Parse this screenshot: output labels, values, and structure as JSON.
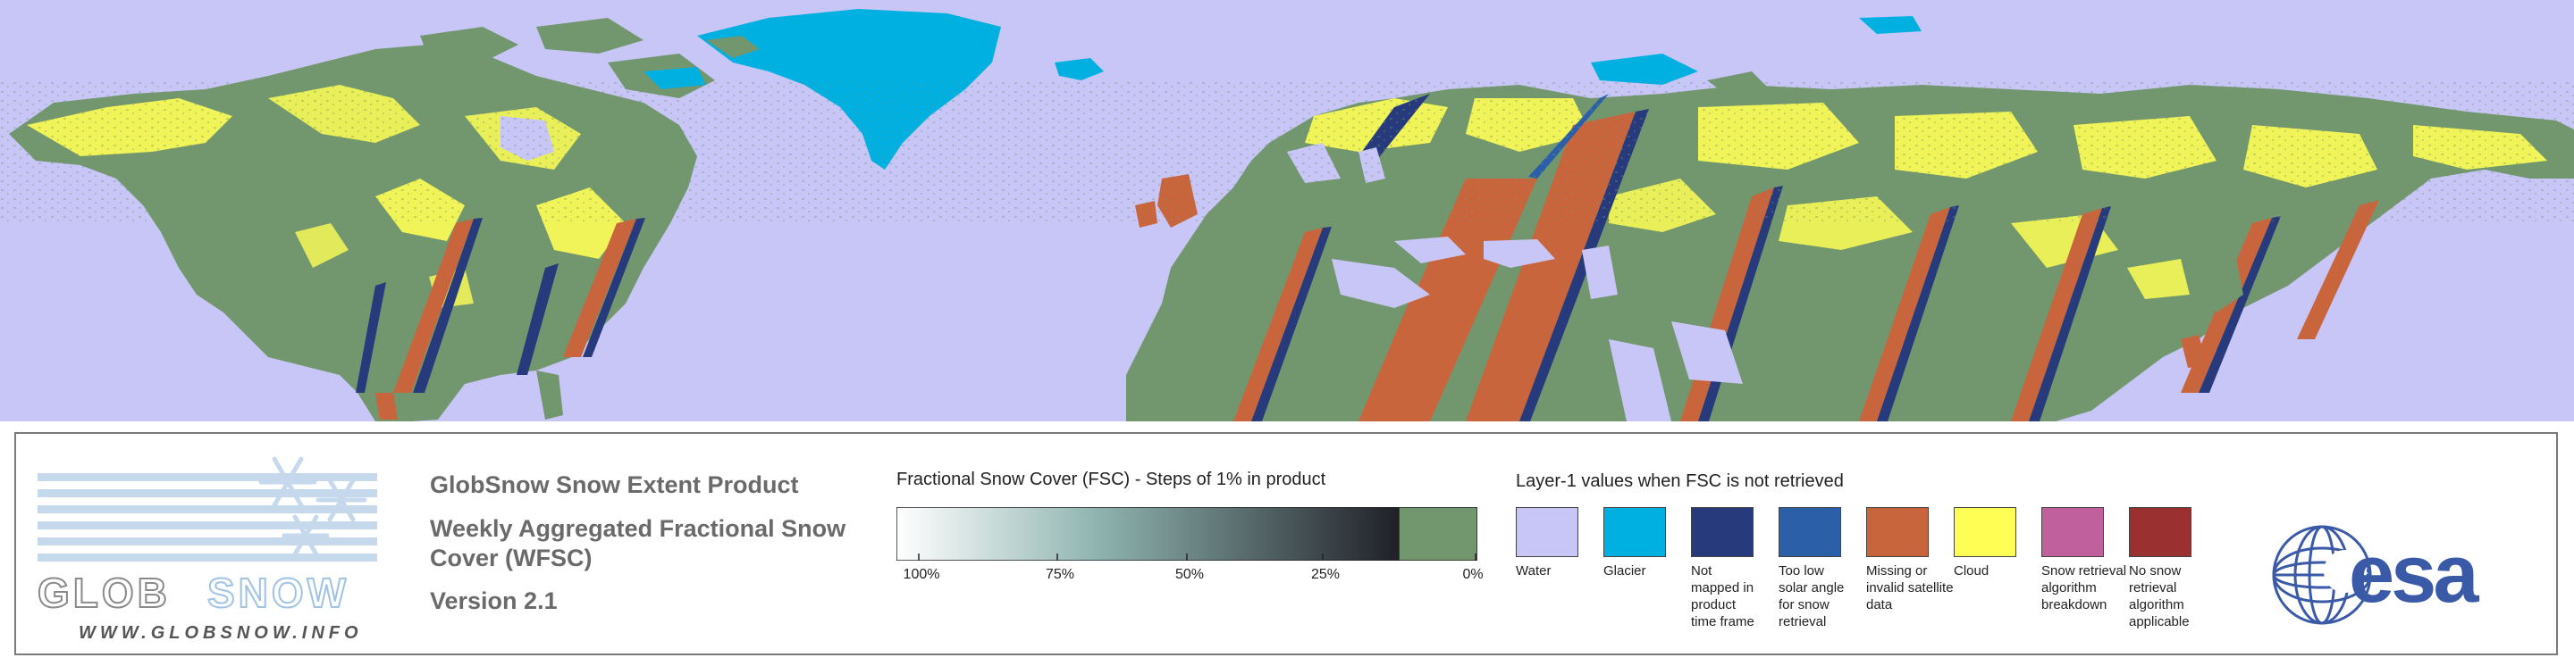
{
  "map": {
    "colors": {
      "water": "#c8c6f6",
      "glacier": "#00b0e0",
      "land_snowfree": "#72976e",
      "cloud": "#fefe55",
      "missing": "#c9653c",
      "not_mapped": "#263a7c",
      "low_solar": "#2b5fa8"
    }
  },
  "logo": {
    "word_left": "GLOB",
    "word_right": "SNOW",
    "url": "WWW.GLOBSNOW.INFO"
  },
  "product": {
    "title": "GlobSnow Snow Extent Product",
    "subtitle": "Weekly Aggregated Fractional Snow Cover (WFSC)",
    "version": "Version 2.1"
  },
  "fsc": {
    "title": "Fractional Snow Cover (FSC) - Steps of 1% in product",
    "ticks": [
      "100%",
      "75%",
      "50%",
      "25%",
      "0%"
    ],
    "gradient_start": "#ffffff",
    "gradient_mid": "#8fb4b0",
    "gradient_end": "#202028",
    "zero_color": "#72976e"
  },
  "layer1": {
    "title": "Layer-1 values when FSC is not retrieved",
    "items": [
      {
        "label": "Water",
        "color": "#c8c6f6"
      },
      {
        "label": "Glacier",
        "color": "#00b0e0"
      },
      {
        "label": "Not mapped in product time frame",
        "color": "#263a7c"
      },
      {
        "label": "Too low solar angle for snow retrieval",
        "color": "#2b5fa8"
      },
      {
        "label": "Missing or invalid satellite data",
        "color": "#c9653c"
      },
      {
        "label": "Cloud",
        "color": "#fefe55"
      },
      {
        "label": "Snow retrieval algorithm breakdown",
        "color": "#c0609c"
      },
      {
        "label": "No snow retrieval algorithm applicable",
        "color": "#9a3030"
      }
    ]
  },
  "esa": {
    "text": "esa"
  }
}
